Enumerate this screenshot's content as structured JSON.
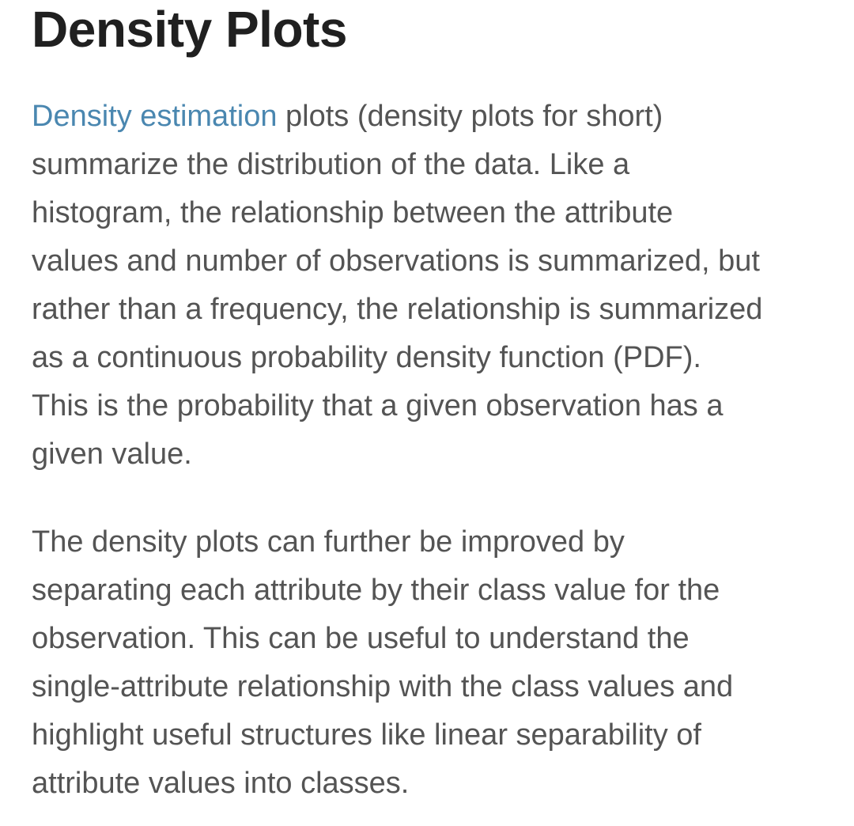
{
  "article": {
    "heading": "Density Plots",
    "paragraph1": {
      "link_text": "Density estimation",
      "lines": [
        " plots (density plots for short)",
        "summarize the distribution of the data. Like a",
        "histogram, the relationship between the attribute",
        "values and number of observations is summarized, but",
        "rather than a frequency, the relationship is summarized",
        "as a continuous probability density function (PDF).",
        "This is the probability that a given observation has a",
        "given value."
      ]
    },
    "paragraph2": {
      "lines": [
        "The density plots can further be improved by",
        "separating each attribute by their class value for the",
        "observation. This can be useful to understand the",
        "single-attribute relationship with the class values and",
        "highlight useful structures like linear separability of",
        "attribute values into classes."
      ]
    }
  },
  "colors": {
    "heading": "#202020",
    "body_text": "#545454",
    "link": "#4a87b0",
    "background": "#ffffff"
  }
}
